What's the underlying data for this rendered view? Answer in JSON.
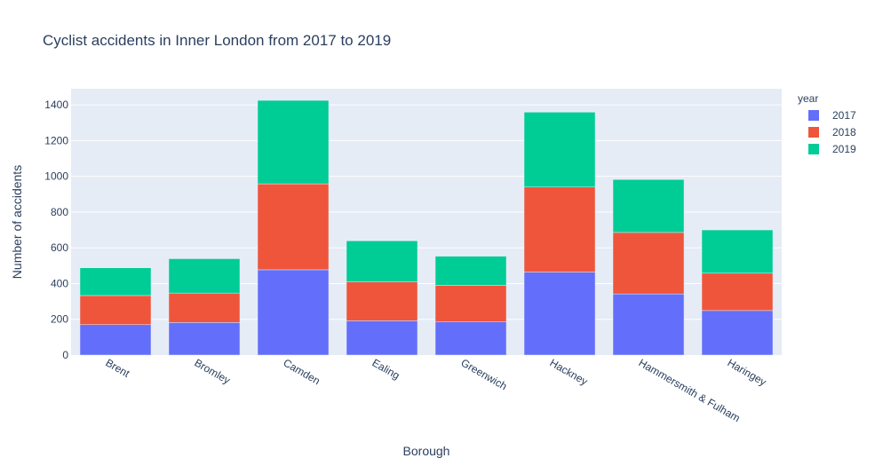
{
  "chart_data": {
    "type": "bar",
    "barmode": "stack",
    "title": "Cyclist accidents in Inner London from 2017 to 2019",
    "xlabel": "Borough",
    "ylabel": "Number of accidents",
    "categories": [
      "Brent",
      "Bromley",
      "Camden",
      "Ealing",
      "Greenwich",
      "Hackney",
      "Hammersmith & Fulham",
      "Haringey"
    ],
    "series": [
      {
        "name": "2017",
        "color": "#636efa",
        "values": [
          170,
          182,
          477,
          192,
          185,
          464,
          342,
          249
        ]
      },
      {
        "name": "2018",
        "color": "#ef553b",
        "values": [
          163,
          165,
          481,
          217,
          205,
          476,
          344,
          209
        ]
      },
      {
        "name": "2019",
        "color": "#00cc96",
        "values": [
          155,
          192,
          467,
          230,
          163,
          419,
          296,
          242
        ]
      }
    ],
    "ylim": [
      0,
      1490
    ],
    "yticks": [
      0,
      200,
      400,
      600,
      800,
      1000,
      1200,
      1400
    ],
    "grid": true,
    "legend": {
      "title": "year",
      "placement": "top-right"
    }
  }
}
